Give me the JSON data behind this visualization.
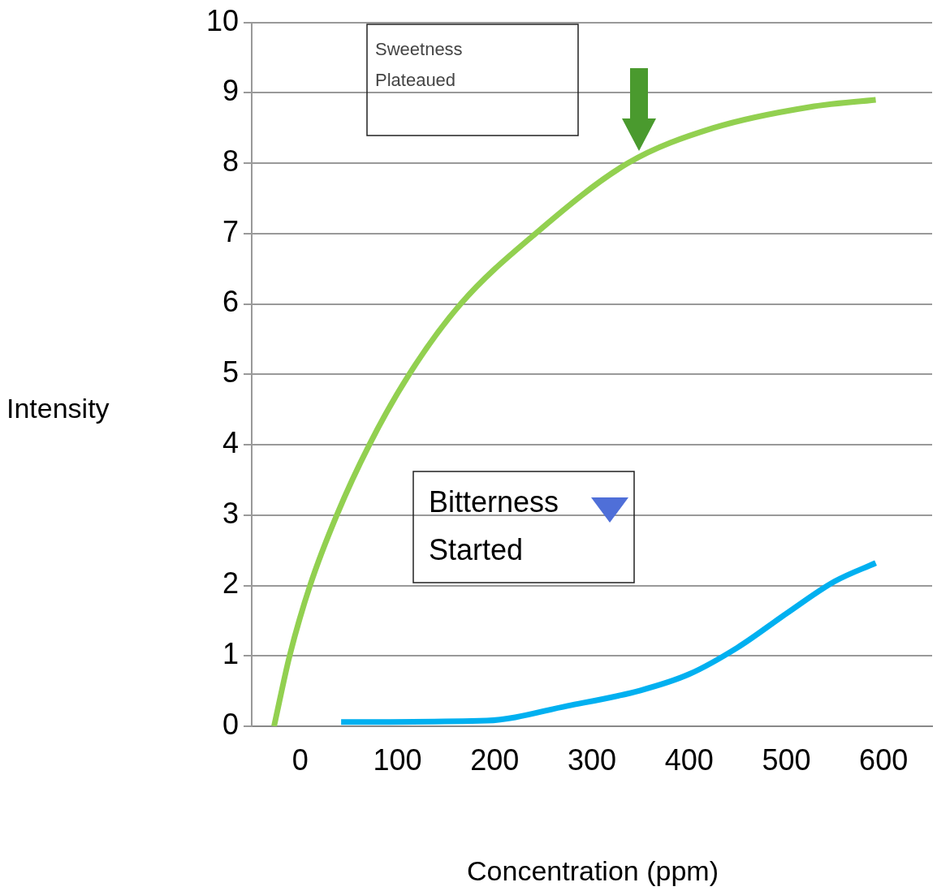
{
  "chart_data": {
    "type": "line",
    "xlabel": "Concentration (ppm)",
    "ylabel": "Intensity",
    "annotations": [
      "Sweetness Plateaued",
      "Bitterness Started"
    ],
    "xlim": [
      -50,
      650
    ],
    "xticks": [
      0,
      100,
      200,
      300,
      400,
      500,
      600
    ],
    "ylim": [
      0,
      10
    ],
    "yticks": [
      0,
      1,
      2,
      3,
      4,
      5,
      6,
      7,
      8,
      9,
      10
    ],
    "grid": "y",
    "legend": false,
    "marker": "none",
    "line_style": "solid",
    "series": [
      {
        "color": "#92d050",
        "x": [
          -27,
          -11,
          10,
          37.5,
          71,
          112,
          165,
          242,
          337,
          425,
          525,
          592
        ],
        "values": [
          0,
          1,
          2,
          3,
          4,
          5,
          6,
          7,
          8,
          8.5,
          8.8,
          8.9
        ]
      },
      {
        "color": "#00b0f0",
        "x": [
          42,
          192,
          275,
          350,
          400,
          450,
          500,
          550,
          592
        ],
        "values": [
          0.06,
          0.08,
          0.29,
          0.51,
          0.74,
          1.12,
          1.6,
          2.06,
          2.32
        ]
      }
    ]
  }
}
